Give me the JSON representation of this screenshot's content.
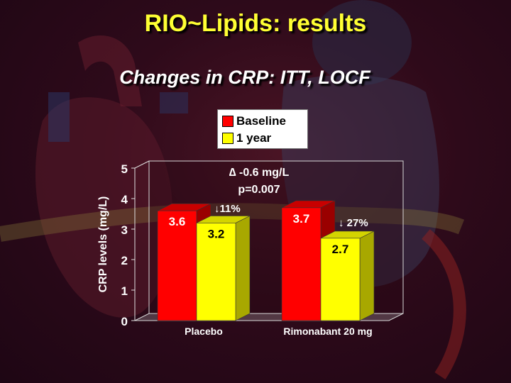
{
  "slide": {
    "title": "RIO~Lipids: results",
    "subtitle": "Changes in CRP: ITT, LOCF"
  },
  "colors": {
    "title": "#ffff33",
    "baseline": "#ff0000",
    "one_year": "#ffff00",
    "background": "#2e0a1a"
  },
  "legend": {
    "items": [
      {
        "label": "Baseline",
        "color": "#ff0000"
      },
      {
        "label": "1 year",
        "color": "#ffff00"
      }
    ]
  },
  "annotations": {
    "delta": "∆ -0.6 mg/L",
    "pvalue": "p=0.007",
    "placebo_change": "↓11%",
    "rimonabant_change": "↓ 27%"
  },
  "chart_data": {
    "type": "bar",
    "categories": [
      "Placebo",
      "Rimonabant 20 mg"
    ],
    "series": [
      {
        "name": "Baseline",
        "values": [
          3.6,
          3.7
        ]
      },
      {
        "name": "1 year",
        "values": [
          3.2,
          2.7
        ]
      }
    ],
    "xlabel": "",
    "ylabel": "CRP levels (mg/L)",
    "ylim": [
      0,
      5
    ],
    "yticks": [
      0,
      1,
      2,
      3,
      4,
      5
    ],
    "legend_position": "top"
  }
}
